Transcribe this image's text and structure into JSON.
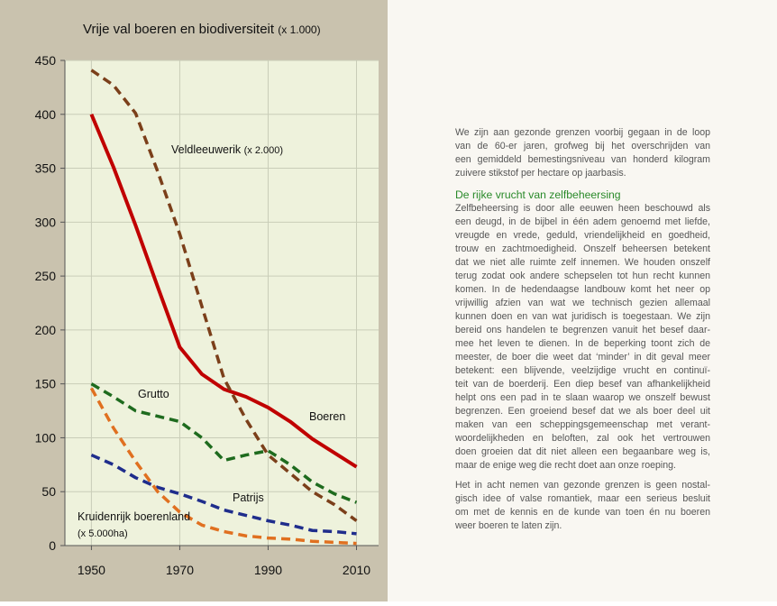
{
  "chart_data": {
    "type": "line",
    "title": "Vrije val boeren en biodiversiteit",
    "title_note": "(x 1.000)",
    "x": [
      1950,
      1955,
      1960,
      1965,
      1970,
      1975,
      1980,
      1985,
      1990,
      1995,
      2000,
      2005,
      2010
    ],
    "xlim": [
      1944,
      2015
    ],
    "xticks": [
      1950,
      1970,
      1990,
      2010
    ],
    "ylim": [
      0,
      450
    ],
    "yticks": [
      0,
      50,
      100,
      150,
      200,
      250,
      300,
      350,
      400,
      450
    ],
    "grid": true,
    "series": [
      {
        "name": "Boeren",
        "color": "#c00000",
        "dashed": false,
        "values": [
          400,
          351,
          297,
          240,
          184,
          159,
          145,
          138,
          128,
          115,
          99,
          86,
          73
        ]
      },
      {
        "name": "Veldleeuwerik",
        "note": "(x 2.000)",
        "color": "#7b3f1a",
        "dashed": true,
        "values": [
          441,
          427,
          401,
          347,
          289,
          222,
          155,
          117,
          84,
          67,
          50,
          38,
          23
        ]
      },
      {
        "name": "Grutto",
        "color": "#1e6b1e",
        "dashed": true,
        "values": [
          150,
          138,
          125,
          120,
          115,
          100,
          79,
          84,
          88,
          75,
          59,
          48,
          40
        ]
      },
      {
        "name": "Patrijs",
        "color": "#1f2d8c",
        "dashed": true,
        "values": [
          84,
          75,
          63,
          54,
          48,
          41,
          33,
          28,
          23,
          19,
          14,
          13,
          11
        ]
      },
      {
        "name": "Kruidenrijk boerenland",
        "note": "(x 5.000ha)",
        "color": "#e07020",
        "dashed": true,
        "values": [
          146,
          109,
          78,
          50,
          31,
          19,
          13,
          9,
          7,
          6,
          4,
          3,
          2
        ]
      }
    ]
  },
  "article": {
    "intro": [
      "We zijn aan gezonde grenzen voorbij gegaan in de loop",
      "van de 60-er jaren, grofweg bij het overschrijden van",
      "een gemiddeld bemestingsniveau van honderd kilogram",
      "zuivere stikstof per hectare op jaarbasis."
    ],
    "heading": "De rijke vrucht van zelfbeheersing",
    "body": [
      "Zelfbeheersing is door alle eeuwen heen beschouwd als",
      "een deugd, in de bijbel in één adem genoemd met liefde,",
      "vreugde en vrede, geduld, vriendelijkheid en goedheid,",
      "trouw en zachtmoedigheid. Onszelf beheersen betekent",
      "dat we niet alle ruimte zelf innemen. We houden onszelf",
      "terug zodat ook andere schepselen tot hun recht kunnen",
      "komen. In de hedendaagse landbouw komt het neer op",
      "vrijwillig afzien van wat we technisch gezien allemaal",
      "kunnen doen en van wat juridisch is toegestaan. We zijn",
      "bereid ons handelen te begrenzen vanuit het besef daar-",
      "mee het leven te dienen. In de beperking toont zich de",
      "meester, de boer die weet dat ‘minder’ in dit geval meer",
      "betekent: een blijvende, veelzijdige vrucht en continuï-",
      "teit van de boerderij. Een diep besef van afhankelijkheid",
      "helpt ons een pad in te slaan waarop we onszelf bewust",
      "begrenzen. Een groeiend besef dat we als boer deel uit",
      "maken van een scheppingsgemeenschap met verant-",
      "woordelijkheden en beloften, zal ook het vertrouwen",
      "doen groeien dat dit niet alleen een begaanbare weg is,",
      "maar de enige weg die recht doet aan onze roeping."
    ],
    "closing": [
      "Het in acht nemen van gezonde grenzen is geen nostal-",
      "gisch idee of valse romantiek, maar een serieus besluit",
      "om met de kennis en de kunde van toen én nu boeren",
      "weer boeren te laten zijn."
    ]
  }
}
